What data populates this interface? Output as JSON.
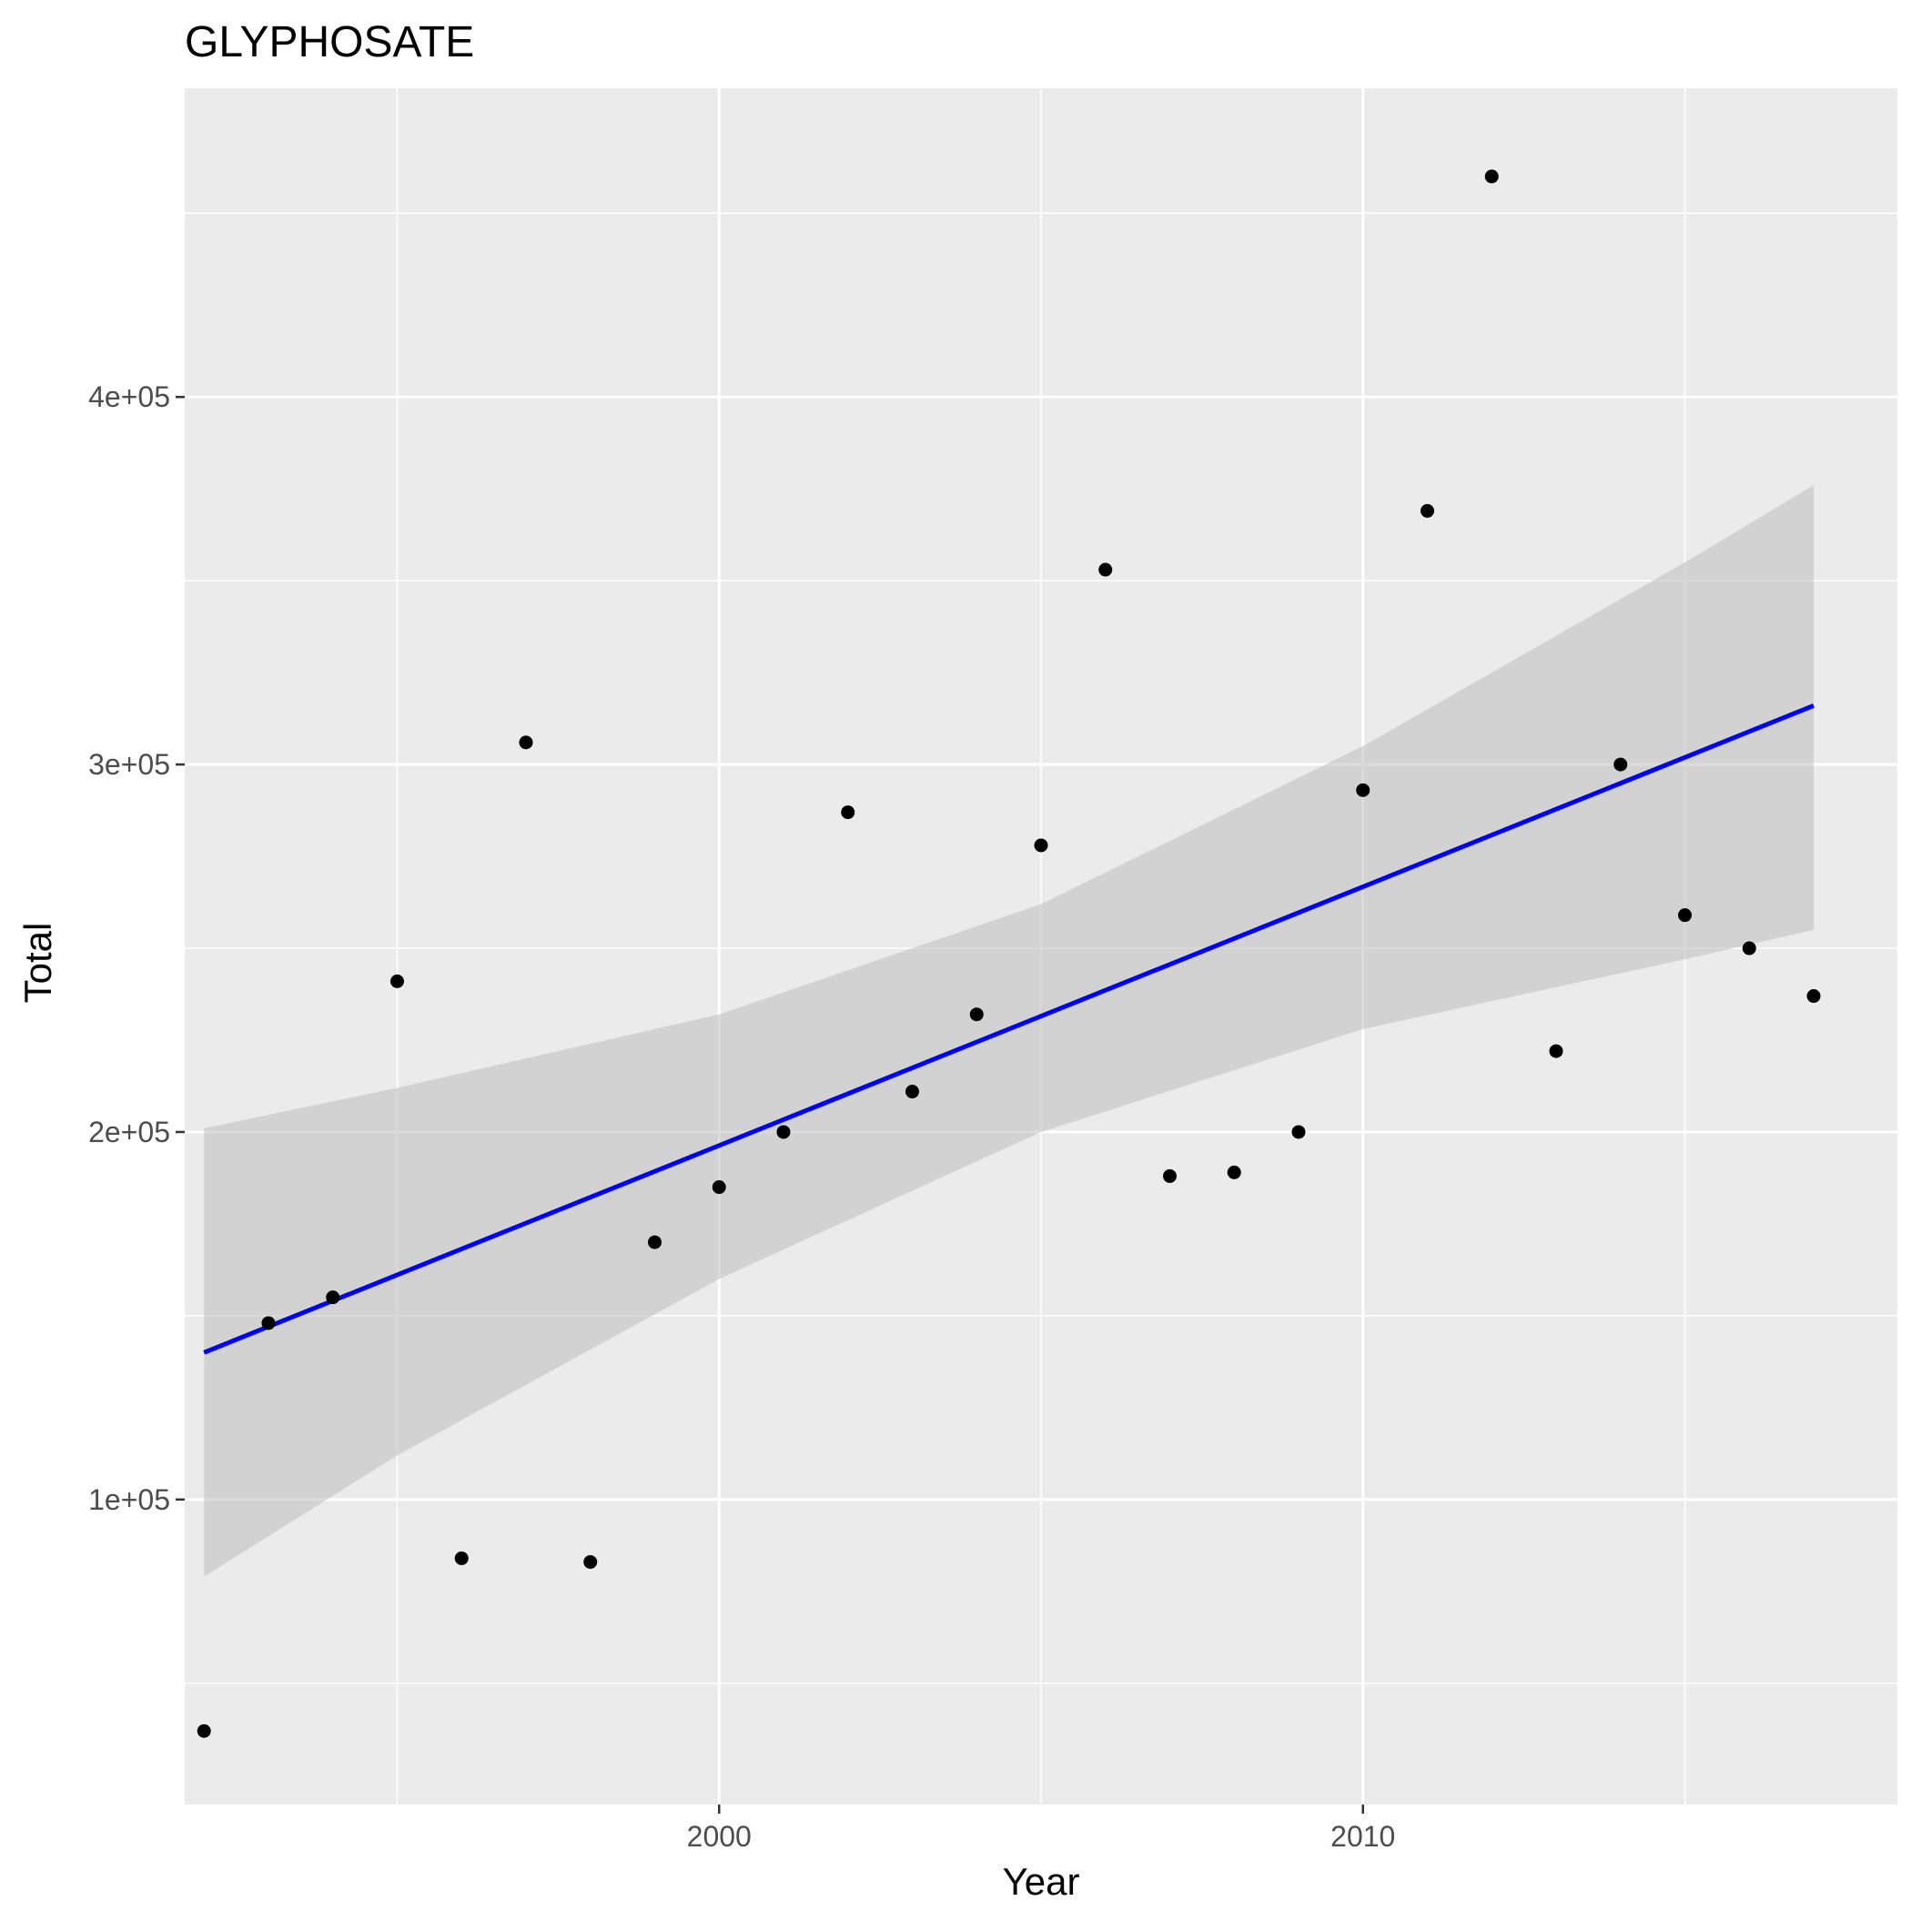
{
  "chart_data": {
    "type": "scatter",
    "title": "GLYPHOSATE",
    "xlabel": "Year",
    "ylabel": "Total",
    "xlim": [
      1991.7,
      2018.3
    ],
    "ylim": [
      17000,
      484000
    ],
    "x_ticks": [
      2000,
      2010
    ],
    "x_tick_labels": [
      "2000",
      "2010"
    ],
    "x_minor_ticks": [
      1995,
      2005,
      2015
    ],
    "y_ticks": [
      100000,
      200000,
      300000,
      400000
    ],
    "y_tick_labels": [
      "1e+05",
      "2e+05",
      "3e+05",
      "4e+05"
    ],
    "y_minor_ticks": [
      50000,
      150000,
      250000,
      350000,
      450000
    ],
    "grid": true,
    "colors": {
      "panel": "#ebebeb",
      "grid": "#ffffff",
      "points": "#000000",
      "trend_line": "#0000ff",
      "confidence_band": "#bebebe"
    },
    "points": {
      "x": [
        1992,
        1993,
        1994,
        1995,
        1996,
        1997,
        1998,
        1999,
        2000,
        2001,
        2002,
        2003,
        2004,
        2005,
        2006,
        2007,
        2008,
        2009,
        2010,
        2011,
        2012,
        2013,
        2014,
        2015,
        2016,
        2017
      ],
      "y": [
        37000,
        148000,
        155000,
        241000,
        84000,
        306000,
        83000,
        170000,
        185000,
        200000,
        287000,
        211000,
        232000,
        278000,
        353000,
        188000,
        189000,
        200000,
        293000,
        369000,
        460000,
        222000,
        300000,
        259000,
        250000,
        237000
      ]
    },
    "trend": {
      "x": [
        1992,
        2017
      ],
      "y": [
        140000,
        316000
      ]
    },
    "confidence_band": {
      "x": [
        1992,
        1995,
        2000,
        2005,
        2010,
        2015,
        2017
      ],
      "lower": [
        79000,
        112000,
        160000,
        200000,
        228000,
        247000,
        255000
      ],
      "upper": [
        201000,
        212000,
        232000,
        262000,
        305000,
        355000,
        376000
      ]
    }
  }
}
